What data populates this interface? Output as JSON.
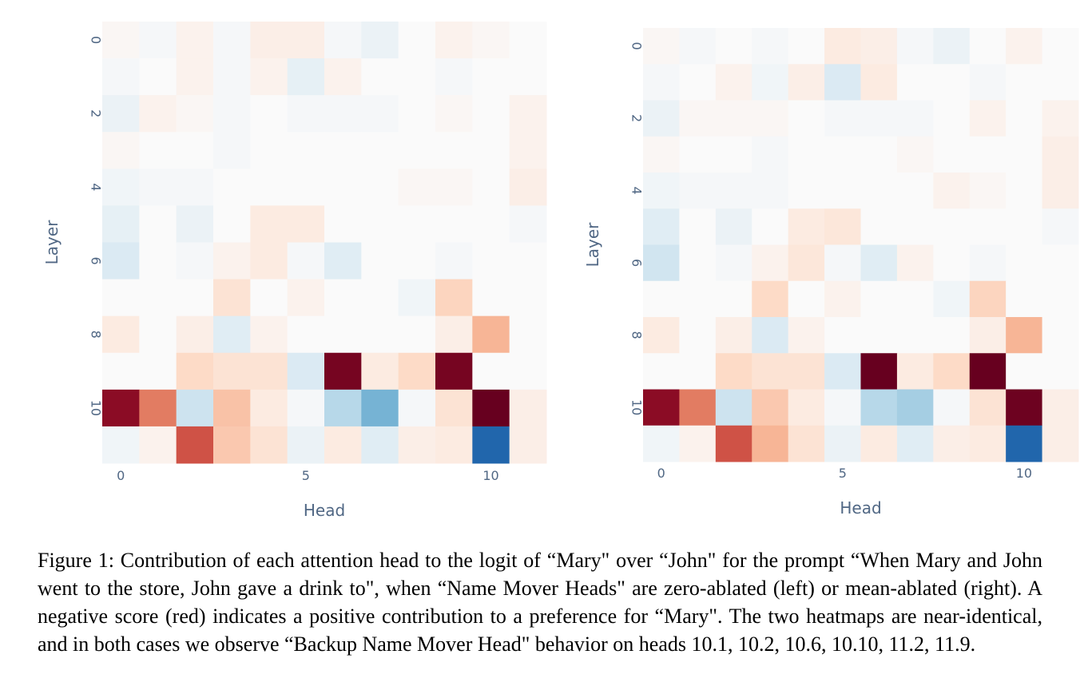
{
  "chart_data": [
    {
      "type": "heatmap",
      "title": "",
      "xlabel": "Head",
      "ylabel": "Layer",
      "x_ticks": [
        "0",
        "5",
        "10"
      ],
      "y_ticks": [
        "0",
        "2",
        "4",
        "6",
        "8",
        "10"
      ],
      "n_rows": 12,
      "n_cols": 12,
      "colorscale": "RdBu (red = negative, blue = positive)",
      "zlim": [
        -1,
        1
      ],
      "values": [
        [
          -0.01,
          0.01,
          -0.02,
          0.01,
          -0.03,
          -0.03,
          0.01,
          0.03,
          0.0,
          -0.02,
          -0.01,
          0.0
        ],
        [
          0.01,
          0.0,
          -0.02,
          0.01,
          -0.02,
          0.04,
          -0.02,
          0.0,
          0.0,
          0.01,
          0.0,
          0.0
        ],
        [
          0.03,
          -0.02,
          -0.01,
          0.01,
          0.0,
          0.01,
          0.01,
          0.01,
          0.0,
          -0.01,
          0.0,
          -0.02
        ],
        [
          -0.01,
          0.0,
          0.0,
          0.01,
          0.0,
          0.0,
          0.0,
          0.0,
          0.0,
          0.0,
          0.0,
          -0.02
        ],
        [
          0.02,
          0.01,
          0.01,
          0.0,
          0.0,
          0.0,
          0.0,
          0.0,
          -0.01,
          -0.01,
          0.0,
          -0.03
        ],
        [
          0.04,
          0.0,
          0.03,
          0.0,
          -0.04,
          -0.04,
          0.0,
          0.0,
          0.0,
          0.0,
          0.0,
          0.01
        ],
        [
          0.06,
          0.0,
          0.01,
          -0.02,
          -0.04,
          0.01,
          0.05,
          0.0,
          0.0,
          0.01,
          0.0,
          0.0
        ],
        [
          0.0,
          0.0,
          0.0,
          -0.06,
          0.0,
          -0.02,
          0.0,
          0.0,
          0.02,
          -0.1,
          0.0,
          0.0
        ],
        [
          -0.04,
          0.0,
          -0.03,
          0.05,
          -0.02,
          0.0,
          0.0,
          0.0,
          0.0,
          -0.03,
          -0.2,
          0.0
        ],
        [
          0.0,
          0.0,
          -0.08,
          -0.06,
          -0.06,
          0.06,
          -0.95,
          -0.04,
          -0.08,
          -0.95,
          0.0,
          0.0
        ],
        [
          -0.88,
          -0.4,
          0.09,
          -0.16,
          -0.04,
          0.01,
          0.15,
          0.34,
          0.01,
          -0.06,
          -1.0,
          -0.03
        ],
        [
          0.02,
          -0.02,
          -0.55,
          -0.14,
          -0.06,
          0.03,
          -0.04,
          0.05,
          -0.03,
          -0.04,
          0.75,
          -0.03
        ]
      ]
    },
    {
      "type": "heatmap",
      "title": "",
      "xlabel": "Head",
      "ylabel": "Layer",
      "x_ticks": [
        "0",
        "5",
        "10"
      ],
      "y_ticks": [
        "0",
        "2",
        "4",
        "6",
        "8",
        "10"
      ],
      "n_rows": 12,
      "n_cols": 12,
      "colorscale": "RdBu (red = negative, blue = positive)",
      "zlim": [
        -1,
        1
      ],
      "values": [
        [
          -0.01,
          0.01,
          0.0,
          0.01,
          0.0,
          -0.04,
          -0.03,
          0.01,
          0.03,
          0.0,
          -0.02,
          0.0
        ],
        [
          0.01,
          0.0,
          -0.02,
          0.02,
          -0.03,
          0.06,
          -0.04,
          0.0,
          0.0,
          0.01,
          0.0,
          0.0
        ],
        [
          0.03,
          -0.01,
          -0.01,
          -0.01,
          0.0,
          0.01,
          0.01,
          0.01,
          0.0,
          -0.02,
          0.0,
          -0.02
        ],
        [
          -0.01,
          0.0,
          0.0,
          0.01,
          0.0,
          0.0,
          0.0,
          -0.01,
          0.0,
          0.0,
          0.0,
          -0.03
        ],
        [
          0.02,
          0.01,
          0.01,
          0.01,
          0.0,
          0.0,
          0.0,
          0.0,
          -0.02,
          -0.01,
          0.0,
          -0.03
        ],
        [
          0.05,
          0.0,
          0.03,
          0.0,
          -0.04,
          -0.05,
          0.0,
          0.0,
          0.0,
          0.0,
          0.0,
          0.01
        ],
        [
          0.08,
          0.0,
          0.01,
          -0.02,
          -0.05,
          0.01,
          0.05,
          -0.02,
          0.0,
          0.01,
          0.0,
          0.0
        ],
        [
          0.0,
          0.0,
          0.0,
          -0.08,
          0.0,
          -0.02,
          0.0,
          0.0,
          0.02,
          -0.1,
          0.0,
          0.0
        ],
        [
          -0.04,
          0.0,
          -0.03,
          0.06,
          -0.02,
          0.0,
          0.0,
          0.0,
          0.0,
          -0.03,
          -0.2,
          0.0
        ],
        [
          0.0,
          0.0,
          -0.08,
          -0.06,
          -0.06,
          0.06,
          -1.0,
          -0.04,
          -0.08,
          -1.0,
          0.0,
          0.0
        ],
        [
          -0.88,
          -0.4,
          0.09,
          -0.14,
          -0.04,
          0.01,
          0.15,
          0.2,
          0.01,
          -0.06,
          -0.98,
          -0.03
        ],
        [
          0.02,
          -0.02,
          -0.55,
          -0.2,
          -0.06,
          0.03,
          -0.04,
          0.05,
          -0.03,
          -0.04,
          0.75,
          -0.03
        ]
      ]
    }
  ],
  "caption": "Figure 1: Contribution of each attention head to the logit of “Mary\" over “John\" for the prompt “When Mary and John went to the store, John gave a drink to\", when “Name Mover Heads\" are zero-ablated (left) or mean-ablated (right). A negative score (red) indicates a positive contribution to a preference for “Mary\". The two heatmaps are near-identical, and in both cases we observe “Backup Name Mover Head\" behavior on heads 10.1, 10.2, 10.6, 10.10, 11.2, 11.9."
}
